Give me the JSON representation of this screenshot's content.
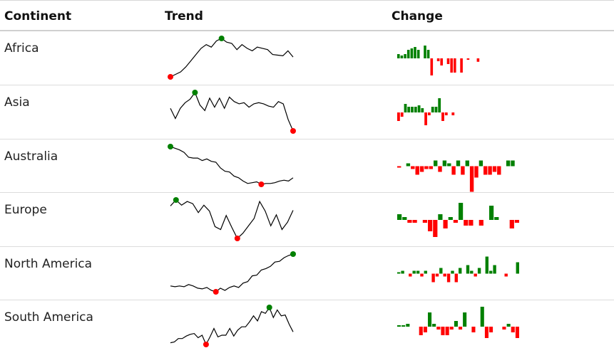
{
  "headers": {
    "continent": "Continent",
    "trend": "Trend",
    "change": "Change"
  },
  "colors": {
    "line": "#000000",
    "max": "#008000",
    "min": "#ff0000",
    "pos": "#008000",
    "neg": "#ff0000"
  },
  "chart_data": [
    {
      "type": "line",
      "name": "Africa",
      "values": [
        0,
        0.2,
        0.4,
        0.8,
        1.3,
        1.8,
        2.3,
        2.6,
        2.4,
        2.9,
        3.1,
        2.8,
        2.7,
        2.2,
        2.6,
        2.3,
        2.1,
        2.4,
        2.3,
        2.2,
        1.8,
        1.75,
        1.7,
        2.1,
        1.6
      ]
    },
    {
      "type": "bar",
      "name": "Africa",
      "values": [
        1.5,
        1,
        1.5,
        3,
        3.5,
        4,
        3,
        0,
        4.5,
        3,
        -6,
        0,
        -1,
        -2.5,
        0,
        -2,
        -5,
        -5,
        0,
        -5,
        0,
        -0.5,
        0,
        0,
        -1.2,
        0,
        0,
        0,
        0,
        0,
        0,
        0,
        0,
        0,
        0,
        0,
        0
      ]
    },
    {
      "type": "line",
      "name": "Asia",
      "values": [
        1.4,
        0.5,
        1.4,
        1.9,
        2.2,
        2.8,
        1.7,
        1.2,
        2.3,
        1.5,
        2.3,
        1.4,
        2.4,
        2,
        1.8,
        1.9,
        1.5,
        1.8,
        1.9,
        1.8,
        1.6,
        1.5,
        2.0,
        1.8,
        0.4,
        -0.6
      ]
    },
    {
      "type": "bar",
      "name": "Asia",
      "values": [
        -3,
        -1.5,
        3,
        2,
        2,
        2,
        2.5,
        1.5,
        -4.5,
        -1,
        2,
        2,
        5,
        -3,
        -1,
        0,
        -1,
        0,
        0,
        0,
        0,
        0,
        0,
        0,
        0,
        0,
        0,
        0,
        0,
        0,
        0,
        0,
        0,
        0,
        0,
        0
      ]
    },
    {
      "type": "line",
      "name": "Australia",
      "values": [
        6.0,
        5.8,
        5.6,
        5.3,
        4.7,
        4.6,
        4.6,
        4.3,
        4.5,
        4.2,
        4.1,
        3.4,
        3.0,
        2.9,
        2.4,
        2.2,
        1.8,
        1.5,
        1.6,
        1.7,
        1.4,
        1.5,
        1.5,
        1.6,
        1.8,
        1.9,
        1.8,
        2.2
      ]
    },
    {
      "type": "bar",
      "name": "Australia",
      "values": [
        -0.5,
        0,
        1,
        -1,
        -3,
        -2,
        -1,
        -1,
        2,
        -2,
        2,
        1,
        -3,
        2,
        -3,
        2,
        -9,
        -4,
        2,
        -3,
        -3,
        -2,
        -3,
        0,
        2,
        2,
        0
      ]
    },
    {
      "type": "line",
      "name": "Europe",
      "values": [
        4.2,
        5.0,
        4.3,
        4.8,
        4.5,
        3.3,
        4.3,
        3.5,
        1.4,
        1.0,
        2.9,
        1.3,
        -0.2,
        0.5,
        1.5,
        2.5,
        4.8,
        3.5,
        1.5,
        3.0,
        1.0,
        2.0,
        3.6
      ]
    },
    {
      "type": "bar",
      "name": "Europe",
      "values": [
        2,
        1,
        -1,
        -1,
        0,
        -1,
        -4,
        -6,
        2,
        -3,
        1,
        -1,
        6,
        -2,
        -2,
        0,
        -2,
        0,
        5,
        1,
        0,
        0,
        -3,
        -1
      ]
    },
    {
      "type": "line",
      "name": "North America",
      "values": [
        1.6,
        1.5,
        1.6,
        1.5,
        1.8,
        1.6,
        1.3,
        1.2,
        1.4,
        1.0,
        0.8,
        1.3,
        1.0,
        1.4,
        1.6,
        1.4,
        2.0,
        2.2,
        3.0,
        3.1,
        3.8,
        4.0,
        4.3,
        4.9,
        5.0,
        5.5,
        5.8,
        6.0
      ]
    },
    {
      "type": "bar",
      "name": "North America",
      "values": [
        0.5,
        1,
        0,
        -1,
        1,
        1,
        -1,
        1,
        0,
        -3,
        -1,
        2,
        -1,
        -3,
        1,
        -3,
        2,
        0,
        3,
        1,
        -1,
        2,
        0,
        6,
        1,
        3,
        0,
        0,
        -1,
        0,
        0,
        4
      ]
    },
    {
      "type": "line",
      "name": "South America",
      "values": [
        0.3,
        0.4,
        0.8,
        0.8,
        1.1,
        1.3,
        1.4,
        0.9,
        1.2,
        0.1,
        1.0,
        2.0,
        1.0,
        1.2,
        1.2,
        2.0,
        1.1,
        1.8,
        2.2,
        2.2,
        2.8,
        3.5,
        2.9,
        4.0,
        3.8,
        4.5,
        3.3,
        4.2,
        3.5,
        3.6,
        2.5,
        1.6
      ]
    },
    {
      "type": "bar",
      "name": "South America",
      "values": [
        0.5,
        0.5,
        1,
        0,
        0,
        -3,
        -2,
        5,
        1,
        -1,
        -3,
        -3,
        -1,
        2,
        -1,
        5,
        0,
        -2,
        0,
        7,
        -4,
        -2,
        0,
        0,
        -1,
        1,
        -2,
        -4
      ]
    }
  ],
  "rows": [
    {
      "continent": "Africa"
    },
    {
      "continent": "Asia"
    },
    {
      "continent": "Australia"
    },
    {
      "continent": "Europe"
    },
    {
      "continent": "North America"
    },
    {
      "continent": "South America"
    }
  ]
}
